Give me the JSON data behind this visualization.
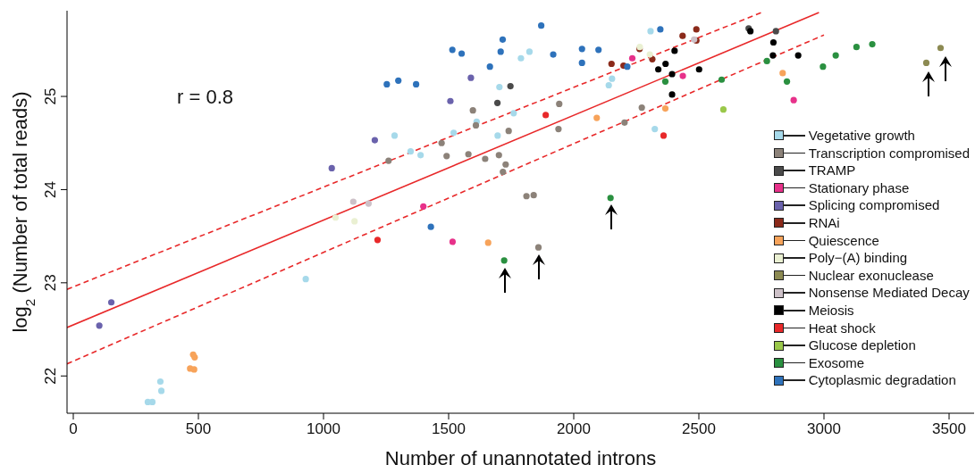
{
  "chart_data": {
    "type": "scatter",
    "xlabel": "Number of unannotated introns",
    "ylabel": "log$_{2}$ (Number of total reads)",
    "xlim": [
      -25,
      3600
    ],
    "ylim": [
      21.6,
      25.92
    ],
    "xticks": [
      0,
      500,
      1000,
      1500,
      2000,
      2500,
      3000,
      3500
    ],
    "yticks": [
      22,
      23,
      24,
      25
    ],
    "grid": false,
    "legend": "bottom right",
    "marker": "circle",
    "annotations": [
      "r = 0.8"
    ],
    "series": [
      {
        "type": "line",
        "marker": "none",
        "color": "#e8292a",
        "line_style": "solid",
        "x": [
          -25,
          2980
        ],
        "values": [
          22.52,
          25.9
        ]
      },
      {
        "type": "line",
        "marker": "none",
        "color": "#e8292a",
        "line_style": "dashed",
        "x": [
          -25,
          2750
        ],
        "values": [
          22.93,
          25.9
        ]
      },
      {
        "type": "line",
        "marker": "none",
        "color": "#e8292a",
        "line_style": "dashed",
        "x": [
          -25,
          3000
        ],
        "values": [
          22.13,
          25.66
        ]
      },
      {
        "name": "Vegetative growth",
        "color": "#a6d9ea",
        "x": [
          929,
          348,
          352,
          298,
          316,
          1823,
          1789,
          1703,
          1760,
          1612,
          1520,
          1284,
          1696,
          1348,
          1388,
          2140,
          2153,
          2307,
          2324
        ],
        "values": [
          23.04,
          21.94,
          21.84,
          21.72,
          21.72,
          25.48,
          25.41,
          25.1,
          24.82,
          24.73,
          24.61,
          24.58,
          24.58,
          24.41,
          24.37,
          25.12,
          25.19,
          25.7,
          24.65
        ]
      },
      {
        "name": "Transcription compromised",
        "color": "#8c8279",
        "x": [
          1597,
          1942,
          1609,
          1740,
          1939,
          1472,
          1260,
          1492,
          1579,
          1646,
          1701,
          1728,
          1717,
          1811,
          1840,
          1859,
          2203,
          2272
        ],
        "values": [
          24.85,
          24.92,
          24.69,
          24.63,
          24.65,
          24.5,
          24.31,
          24.36,
          24.38,
          24.33,
          24.37,
          24.27,
          24.19,
          23.93,
          23.94,
          23.38,
          24.72,
          24.88
        ]
      },
      {
        "name": "TRAMP",
        "color": "#4a4a4a",
        "x": [
          1747,
          1695,
          2699,
          2808
        ],
        "values": [
          25.11,
          24.93,
          25.73,
          25.7
        ]
      },
      {
        "name": "Stationary phase",
        "color": "#e7318a",
        "x": [
          1399,
          1516,
          2234,
          2436,
          2879
        ],
        "values": [
          23.82,
          23.44,
          25.41,
          25.22,
          24.96
        ]
      },
      {
        "name": "Splicing compromised",
        "color": "#6a62ac",
        "x": [
          1033,
          152,
          104,
          1589,
          1507,
          1205
        ],
        "values": [
          24.23,
          22.79,
          22.54,
          25.2,
          24.95,
          24.53
        ]
      },
      {
        "name": "RNAi",
        "color": "#8b2a1a",
        "x": [
          2151,
          2199,
          2263,
          2314,
          2435,
          2490,
          2490
        ],
        "values": [
          25.35,
          25.33,
          25.51,
          25.4,
          25.65,
          25.72,
          25.6
        ]
      },
      {
        "name": "Quiescence",
        "color": "#f7a35a",
        "x": [
          479,
          485,
          467,
          483,
          1658,
          2092,
          2366,
          2835
        ],
        "values": [
          22.23,
          22.2,
          22.08,
          22.07,
          23.43,
          24.77,
          24.87,
          25.25
        ]
      },
      {
        "name": "Poly−(A) binding",
        "color": "#eaf0d2",
        "x": [
          1048,
          1124,
          2264,
          2304
        ],
        "values": [
          23.7,
          23.66,
          25.53,
          25.45
        ]
      },
      {
        "name": "Nuclear exonuclease",
        "color": "#8c8a52",
        "x": [
          3409,
          3466
        ],
        "values": [
          25.36,
          25.52
        ]
      },
      {
        "name": "Nonsense Mediated Decay",
        "color": "#cdc1c8",
        "x": [
          1119,
          1180,
          2481
        ],
        "values": [
          23.87,
          23.85,
          25.61
        ]
      },
      {
        "name": "Meiosis",
        "color": "#000000",
        "x": [
          2367,
          2338,
          2403,
          2393,
          2501,
          2393,
          2706,
          2798,
          2796,
          2897
        ],
        "values": [
          25.35,
          25.29,
          25.49,
          25.24,
          25.29,
          25.02,
          25.7,
          25.58,
          25.44,
          25.44
        ]
      },
      {
        "name": "Heat shock",
        "color": "#e8292a",
        "x": [
          1888,
          1216,
          2359
        ],
        "values": [
          24.8,
          23.46,
          24.58
        ]
      },
      {
        "name": "Glucose depletion",
        "color": "#9ac84a",
        "x": [
          2598
        ],
        "values": [
          24.86
        ]
      },
      {
        "name": "Exosome",
        "color": "#2a9040",
        "x": [
          1722,
          2147,
          2366,
          2591,
          2772,
          2852,
          2996,
          3047,
          3130,
          3193
        ],
        "values": [
          23.24,
          23.91,
          25.16,
          25.18,
          25.38,
          25.16,
          25.32,
          25.44,
          25.53,
          25.56
        ]
      },
      {
        "name": "Cytoplasmic degradation",
        "color": "#2e72bb",
        "x": [
          1870,
          1716,
          1515,
          1552,
          1708,
          1665,
          1918,
          2033,
          2033,
          2099,
          1253,
          1299,
          1370,
          1429,
          2214,
          2346
        ],
        "values": [
          25.76,
          25.61,
          25.5,
          25.46,
          25.48,
          25.32,
          25.45,
          25.51,
          25.36,
          25.5,
          25.13,
          25.17,
          25.13,
          23.6,
          25.32,
          25.72
        ]
      }
    ]
  }
}
